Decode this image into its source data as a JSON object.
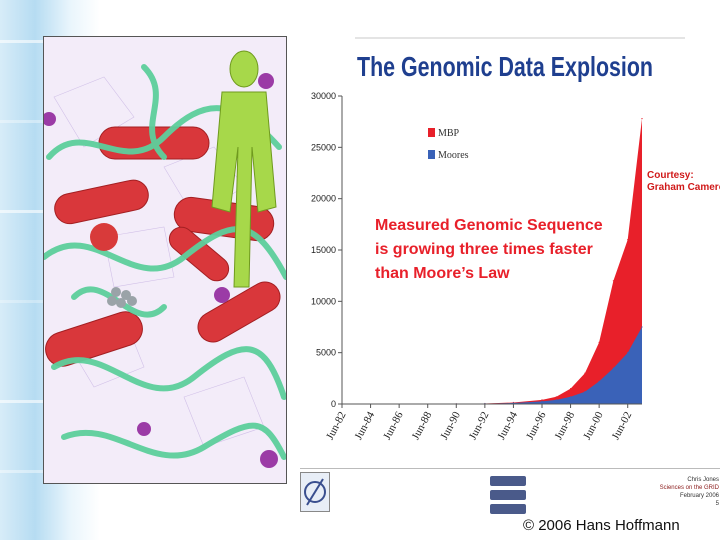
{
  "chart_data": {
    "type": "area",
    "title": "The Genomic Data Explosion",
    "x_tick_labels": [
      "Jun-82",
      "Jun-84",
      "Jun-86",
      "Jun-88",
      "Jun-90",
      "Jun-92",
      "Jun-94",
      "Jun-96",
      "Jun-98",
      "Jun-00",
      "Jun-02"
    ],
    "y_ticks": [
      0,
      5000,
      10000,
      15000,
      20000,
      25000,
      30000
    ],
    "ylim": [
      0,
      30000
    ],
    "series": [
      {
        "name": "MBP",
        "color": "#e8202a",
        "x": [
          1982,
          1990,
          1992,
          1994,
          1996,
          1997,
          1998,
          1999,
          2000,
          2001,
          2002,
          2003
        ],
        "values": [
          0,
          10,
          50,
          150,
          400,
          700,
          1500,
          3000,
          6000,
          12000,
          16000,
          27800
        ]
      },
      {
        "name": "Moores",
        "color": "#3a62b8",
        "x": [
          1982,
          1990,
          1992,
          1994,
          1996,
          1997,
          1998,
          1999,
          2000,
          2001,
          2002,
          2003
        ],
        "values": [
          0,
          10,
          40,
          100,
          250,
          400,
          700,
          1200,
          2200,
          3500,
          5000,
          7500
        ]
      }
    ],
    "annotation": [
      "Measured Genomic Sequence",
      "is growing three times faster",
      "than Moore’s Law"
    ],
    "courtesy": [
      "Courtesy:",
      "Graham Cameron"
    ],
    "legend_placement": "top-left"
  },
  "footer": {
    "copyright": "© 2006 Hans Hoffmann",
    "credits": [
      "Chris Jones",
      "Sciences on the GRID",
      "February 2006",
      "5"
    ]
  }
}
